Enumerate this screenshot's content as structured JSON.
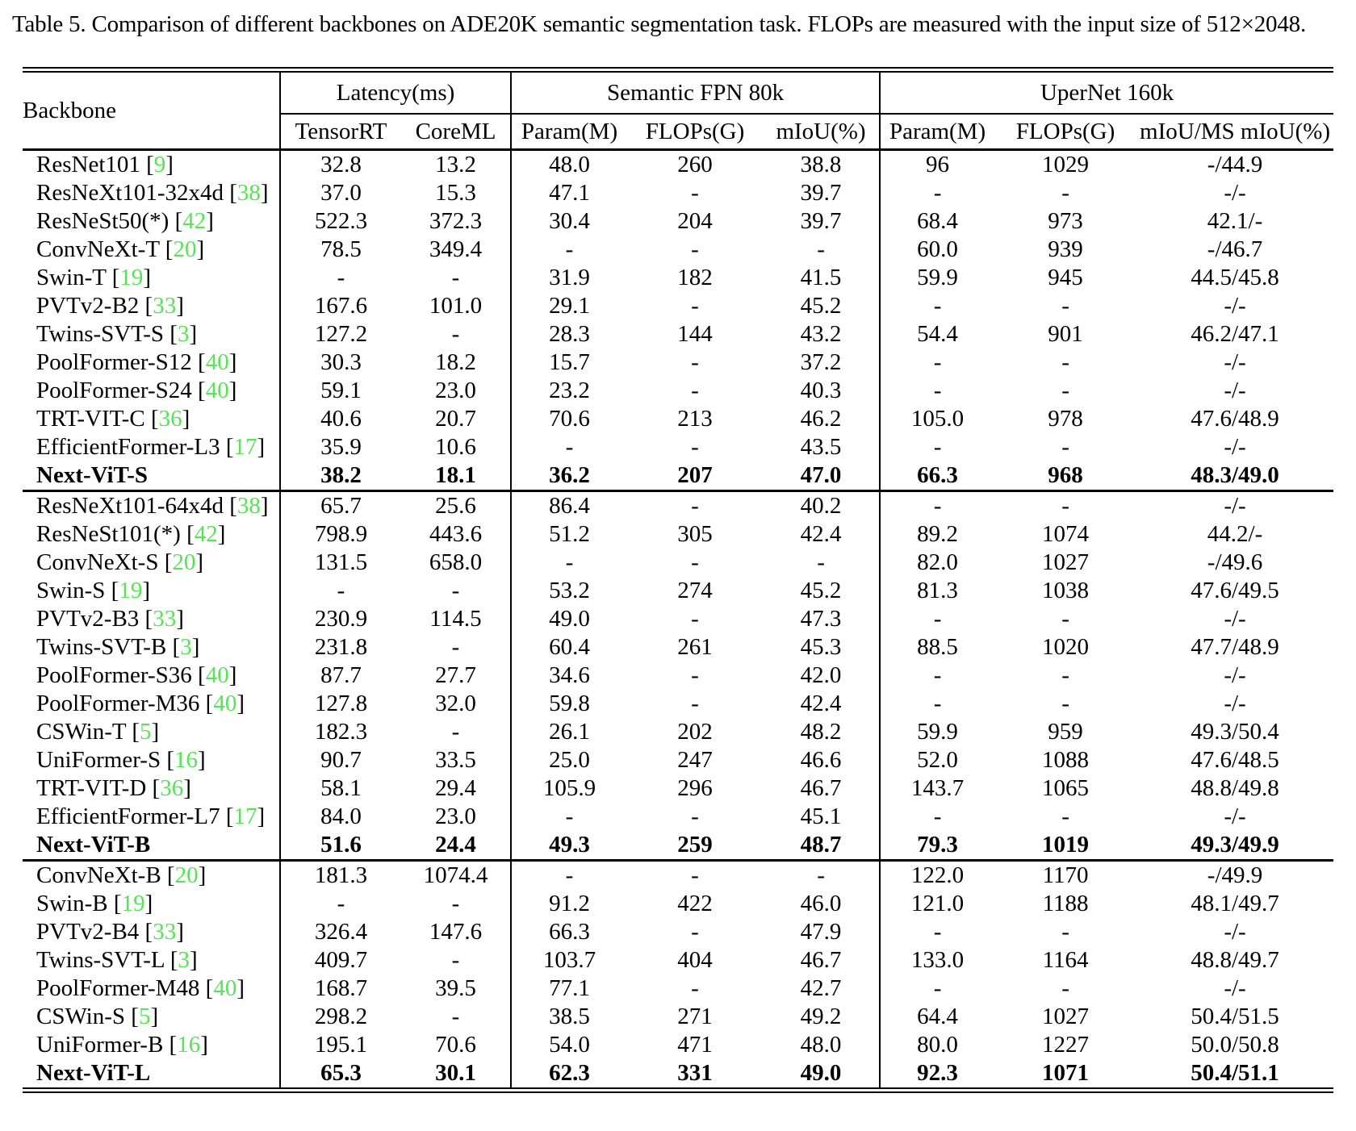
{
  "page": {
    "caption": "Table 5. Comparison of different backbones on ADE20K semantic segmentation task. FLOPs are measured with the input size of 512×2048."
  },
  "table": {
    "backbone_header": "Backbone",
    "groups": [
      {
        "label": "Latency(ms)"
      },
      {
        "label": "Semantic FPN 80k"
      },
      {
        "label": "UperNet 160k"
      }
    ],
    "subheaders": [
      "TensorRT",
      "CoreML",
      "Param(M)",
      "FLOPs(G)",
      "mIoU(%)",
      "Param(M)",
      "FLOPs(G)",
      "mIoU/MS mIoU(%)"
    ],
    "colors": {
      "citation_green": "#56e356",
      "text": "#000000",
      "background": "#ffffff"
    },
    "sections": [
      {
        "rows": [
          {
            "backbone": "ResNet101",
            "ref": "9",
            "bold": false,
            "values": [
              "32.8",
              "13.2",
              "48.0",
              "260",
              "38.8",
              "96",
              "1029",
              "-/44.9"
            ]
          },
          {
            "backbone": "ResNeXt101-32x4d",
            "ref": "38",
            "bold": false,
            "values": [
              "37.0",
              "15.3",
              "47.1",
              "-",
              "39.7",
              "-",
              "-",
              "-/-"
            ]
          },
          {
            "backbone": "ResNeSt50(*)",
            "ref": "42",
            "bold": false,
            "values": [
              "522.3",
              "372.3",
              "30.4",
              "204",
              "39.7",
              "68.4",
              "973",
              "42.1/-"
            ]
          },
          {
            "backbone": "ConvNeXt-T",
            "ref": "20",
            "bold": false,
            "values": [
              "78.5",
              "349.4",
              "-",
              "-",
              "-",
              "60.0",
              "939",
              "-/46.7"
            ]
          },
          {
            "backbone": "Swin-T",
            "ref": "19",
            "bold": false,
            "values": [
              "-",
              "-",
              "31.9",
              "182",
              "41.5",
              "59.9",
              "945",
              "44.5/45.8"
            ]
          },
          {
            "backbone": "PVTv2-B2",
            "ref": "33",
            "bold": false,
            "values": [
              "167.6",
              "101.0",
              "29.1",
              "-",
              "45.2",
              "-",
              "-",
              "-/-"
            ]
          },
          {
            "backbone": "Twins-SVT-S",
            "ref": "3",
            "bold": false,
            "values": [
              "127.2",
              "-",
              "28.3",
              "144",
              "43.2",
              "54.4",
              "901",
              "46.2/47.1"
            ]
          },
          {
            "backbone": "PoolFormer-S12",
            "ref": "40",
            "bold": false,
            "values": [
              "30.3",
              "18.2",
              "15.7",
              "-",
              "37.2",
              "-",
              "-",
              "-/-"
            ]
          },
          {
            "backbone": "PoolFormer-S24",
            "ref": "40",
            "bold": false,
            "values": [
              "59.1",
              "23.0",
              "23.2",
              "-",
              "40.3",
              "-",
              "-",
              "-/-"
            ]
          },
          {
            "backbone": "TRT-VIT-C",
            "ref": "36",
            "bold": false,
            "values": [
              "40.6",
              "20.7",
              "70.6",
              "213",
              "46.2",
              "105.0",
              "978",
              "47.6/48.9"
            ]
          },
          {
            "backbone": "EfficientFormer-L3",
            "ref": "17",
            "bold": false,
            "values": [
              "35.9",
              "10.6",
              "-",
              "-",
              "43.5",
              "-",
              "-",
              "-/-"
            ]
          },
          {
            "backbone": "Next-ViT-S",
            "ref": null,
            "bold": true,
            "values": [
              "38.2",
              "18.1",
              "36.2",
              "207",
              "47.0",
              "66.3",
              "968",
              "48.3/49.0"
            ]
          }
        ]
      },
      {
        "rows": [
          {
            "backbone": "ResNeXt101-64x4d",
            "ref": "38",
            "bold": false,
            "values": [
              "65.7",
              "25.6",
              "86.4",
              "-",
              "40.2",
              "-",
              "-",
              "-/-"
            ]
          },
          {
            "backbone": "ResNeSt101(*)",
            "ref": "42",
            "bold": false,
            "values": [
              "798.9",
              "443.6",
              "51.2",
              "305",
              "42.4",
              "89.2",
              "1074",
              "44.2/-"
            ]
          },
          {
            "backbone": "ConvNeXt-S",
            "ref": "20",
            "bold": false,
            "values": [
              "131.5",
              "658.0",
              "-",
              "-",
              "-",
              "82.0",
              "1027",
              "-/49.6"
            ]
          },
          {
            "backbone": "Swin-S",
            "ref": "19",
            "bold": false,
            "values": [
              "-",
              "-",
              "53.2",
              "274",
              "45.2",
              "81.3",
              "1038",
              "47.6/49.5"
            ]
          },
          {
            "backbone": "PVTv2-B3",
            "ref": "33",
            "bold": false,
            "values": [
              "230.9",
              "114.5",
              "49.0",
              "-",
              "47.3",
              "-",
              "-",
              "-/-"
            ]
          },
          {
            "backbone": "Twins-SVT-B",
            "ref": "3",
            "bold": false,
            "values": [
              "231.8",
              "-",
              "60.4",
              "261",
              "45.3",
              "88.5",
              "1020",
              "47.7/48.9"
            ]
          },
          {
            "backbone": "PoolFormer-S36",
            "ref": "40",
            "bold": false,
            "values": [
              "87.7",
              "27.7",
              "34.6",
              "-",
              "42.0",
              "-",
              "-",
              "-/-"
            ]
          },
          {
            "backbone": "PoolFormer-M36",
            "ref": "40",
            "bold": false,
            "values": [
              "127.8",
              "32.0",
              "59.8",
              "-",
              "42.4",
              "-",
              "-",
              "-/-"
            ]
          },
          {
            "backbone": "CSWin-T",
            "ref": "5",
            "bold": false,
            "values": [
              "182.3",
              "-",
              "26.1",
              "202",
              "48.2",
              "59.9",
              "959",
              "49.3/50.4"
            ]
          },
          {
            "backbone": "UniFormer-S",
            "ref": "16",
            "bold": false,
            "values": [
              "90.7",
              "33.5",
              "25.0",
              "247",
              "46.6",
              "52.0",
              "1088",
              "47.6/48.5"
            ]
          },
          {
            "backbone": "TRT-VIT-D",
            "ref": "36",
            "bold": false,
            "values": [
              "58.1",
              "29.4",
              "105.9",
              "296",
              "46.7",
              "143.7",
              "1065",
              "48.8/49.8"
            ]
          },
          {
            "backbone": "EfficientFormer-L7",
            "ref": "17",
            "bold": false,
            "values": [
              "84.0",
              "23.0",
              "-",
              "-",
              "45.1",
              "-",
              "-",
              "-/-"
            ]
          },
          {
            "backbone": "Next-ViT-B",
            "ref": null,
            "bold": true,
            "values": [
              "51.6",
              "24.4",
              "49.3",
              "259",
              "48.7",
              "79.3",
              "1019",
              "49.3/49.9"
            ]
          }
        ]
      },
      {
        "rows": [
          {
            "backbone": "ConvNeXt-B",
            "ref": "20",
            "bold": false,
            "values": [
              "181.3",
              "1074.4",
              "-",
              "-",
              "-",
              "122.0",
              "1170",
              "-/49.9"
            ]
          },
          {
            "backbone": "Swin-B",
            "ref": "19",
            "bold": false,
            "values": [
              "-",
              "-",
              "91.2",
              "422",
              "46.0",
              "121.0",
              "1188",
              "48.1/49.7"
            ]
          },
          {
            "backbone": "PVTv2-B4",
            "ref": "33",
            "bold": false,
            "values": [
              "326.4",
              "147.6",
              "66.3",
              "-",
              "47.9",
              "-",
              "-",
              "-/-"
            ]
          },
          {
            "backbone": "Twins-SVT-L",
            "ref": "3",
            "bold": false,
            "values": [
              "409.7",
              "-",
              "103.7",
              "404",
              "46.7",
              "133.0",
              "1164",
              "48.8/49.7"
            ]
          },
          {
            "backbone": "PoolFormer-M48",
            "ref": "40",
            "bold": false,
            "values": [
              "168.7",
              "39.5",
              "77.1",
              "-",
              "42.7",
              "-",
              "-",
              "-/-"
            ]
          },
          {
            "backbone": "CSWin-S",
            "ref": "5",
            "bold": false,
            "values": [
              "298.2",
              "-",
              "38.5",
              "271",
              "49.2",
              "64.4",
              "1027",
              "50.4/51.5"
            ]
          },
          {
            "backbone": "UniFormer-B",
            "ref": "16",
            "bold": false,
            "values": [
              "195.1",
              "70.6",
              "54.0",
              "471",
              "48.0",
              "80.0",
              "1227",
              "50.0/50.8"
            ]
          },
          {
            "backbone": "Next-ViT-L",
            "ref": null,
            "bold": true,
            "values": [
              "65.3",
              "30.1",
              "62.3",
              "331",
              "49.0",
              "92.3",
              "1071",
              "50.4/51.1"
            ]
          }
        ]
      }
    ]
  }
}
